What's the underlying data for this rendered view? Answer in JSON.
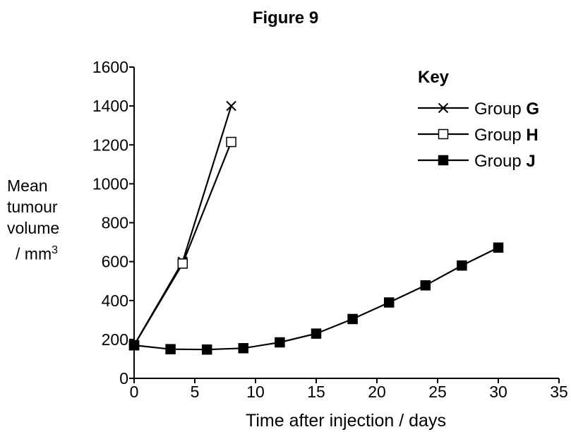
{
  "title": "Figure 9",
  "chart_data": {
    "type": "line",
    "xlabel": "Time after injection / days",
    "ylabel_lines": [
      "Mean",
      "tumour",
      "volume",
      "/ mm"
    ],
    "ylabel_superscript": "3",
    "xlim": [
      0,
      35
    ],
    "ylim": [
      0,
      1600
    ],
    "xticks": [
      0,
      5,
      10,
      15,
      20,
      25,
      30,
      35
    ],
    "yticks": [
      0,
      200,
      400,
      600,
      800,
      1000,
      1200,
      1400,
      1600
    ],
    "grid": false,
    "legend": {
      "title": "Key",
      "placement": "top-right"
    },
    "series": [
      {
        "prefix": "Group ",
        "letter": "G",
        "marker": "cross",
        "x": [
          0,
          4,
          8
        ],
        "y": [
          170,
          600,
          1400
        ]
      },
      {
        "prefix": "Group ",
        "letter": "H",
        "marker": "open-square",
        "x": [
          0,
          4,
          8
        ],
        "y": [
          170,
          590,
          1215
        ]
      },
      {
        "prefix": "Group ",
        "letter": "J",
        "marker": "filled-square",
        "x": [
          0,
          3,
          6,
          9,
          12,
          15,
          18,
          21,
          24,
          27,
          30
        ],
        "y": [
          170,
          150,
          148,
          155,
          185,
          230,
          305,
          390,
          478,
          580,
          672
        ]
      }
    ]
  }
}
